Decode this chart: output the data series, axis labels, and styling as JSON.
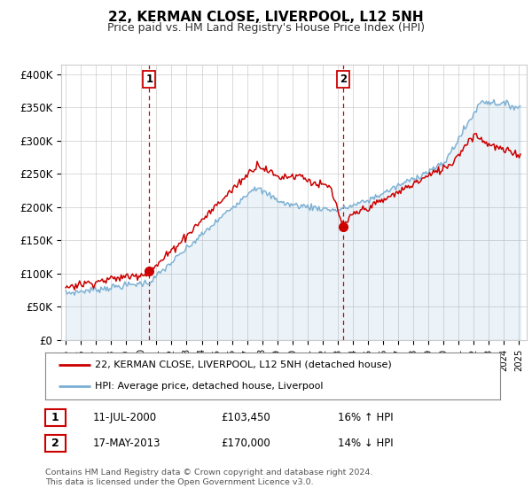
{
  "title": "22, KERMAN CLOSE, LIVERPOOL, L12 5NH",
  "subtitle": "Price paid vs. HM Land Registry's House Price Index (HPI)",
  "ylabel_ticks": [
    "£0",
    "£50K",
    "£100K",
    "£150K",
    "£200K",
    "£250K",
    "£300K",
    "£350K",
    "£400K"
  ],
  "ytick_values": [
    0,
    50000,
    100000,
    150000,
    200000,
    250000,
    300000,
    350000,
    400000
  ],
  "ylim": [
    0,
    415000
  ],
  "line_color_red": "#cc0000",
  "line_color_blue": "#7bafd4",
  "fill_color_blue": "#ddeeff",
  "vline_color": "#cc0000",
  "marker1_x": 2000.53,
  "marker1_y": 103450,
  "marker2_x": 2013.37,
  "marker2_y": 170000,
  "legend_line1": "22, KERMAN CLOSE, LIVERPOOL, L12 5NH (detached house)",
  "legend_line2": "HPI: Average price, detached house, Liverpool",
  "table_row1": [
    "1",
    "11-JUL-2000",
    "£103,450",
    "16% ↑ HPI"
  ],
  "table_row2": [
    "2",
    "17-MAY-2013",
    "£170,000",
    "14% ↓ HPI"
  ],
  "footnote": "Contains HM Land Registry data © Crown copyright and database right 2024.\nThis data is licensed under the Open Government Licence v3.0.",
  "background_color": "#ffffff",
  "grid_color": "#cccccc",
  "xtick_years": [
    1995,
    1996,
    1997,
    1998,
    1999,
    2000,
    2001,
    2002,
    2003,
    2004,
    2005,
    2006,
    2007,
    2008,
    2009,
    2010,
    2011,
    2012,
    2013,
    2014,
    2015,
    2016,
    2017,
    2018,
    2019,
    2020,
    2021,
    2022,
    2023,
    2024,
    2025
  ]
}
